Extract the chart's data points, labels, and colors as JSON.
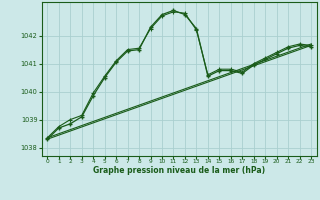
{
  "xlabel": "Graphe pression niveau de la mer (hPa)",
  "background_color": "#cce8e8",
  "grid_color": "#aacfcf",
  "line_color": "#1a5c1a",
  "xlim": [
    -0.5,
    23.5
  ],
  "ylim": [
    1037.7,
    1043.2
  ],
  "yticks": [
    1038,
    1039,
    1040,
    1041,
    1042
  ],
  "xticks": [
    0,
    1,
    2,
    3,
    4,
    5,
    6,
    7,
    8,
    9,
    10,
    11,
    12,
    13,
    14,
    15,
    16,
    17,
    18,
    19,
    20,
    21,
    22,
    23
  ],
  "series1_x": [
    0,
    1,
    2,
    3,
    4,
    5,
    6,
    7,
    8,
    9,
    10,
    11,
    12,
    13,
    14,
    15,
    16,
    17,
    18,
    19,
    20,
    21,
    22,
    23
  ],
  "series1_y": [
    1038.3,
    1038.7,
    1038.85,
    1039.1,
    1039.85,
    1040.5,
    1041.05,
    1041.45,
    1041.5,
    1042.3,
    1042.75,
    1042.9,
    1042.75,
    1042.25,
    1040.55,
    1040.75,
    1040.75,
    1040.65,
    1040.95,
    1041.15,
    1041.35,
    1041.55,
    1041.65,
    1041.6
  ],
  "series2_x": [
    0,
    1,
    2,
    3,
    4,
    5,
    6,
    7,
    8,
    9,
    10,
    11,
    12,
    13,
    14,
    15,
    16,
    17,
    18,
    19,
    20,
    21,
    22,
    23
  ],
  "series2_y": [
    1038.35,
    1038.75,
    1039.0,
    1039.15,
    1039.95,
    1040.55,
    1041.1,
    1041.5,
    1041.55,
    1042.25,
    1042.7,
    1042.85,
    1042.8,
    1042.2,
    1040.6,
    1040.8,
    1040.8,
    1040.7,
    1041.0,
    1041.2,
    1041.4,
    1041.6,
    1041.7,
    1041.65
  ],
  "trend1_x": [
    0,
    23
  ],
  "trend1_y": [
    1038.3,
    1041.65
  ],
  "trend2_x": [
    0,
    23
  ],
  "trend2_y": [
    1038.35,
    1041.7
  ]
}
